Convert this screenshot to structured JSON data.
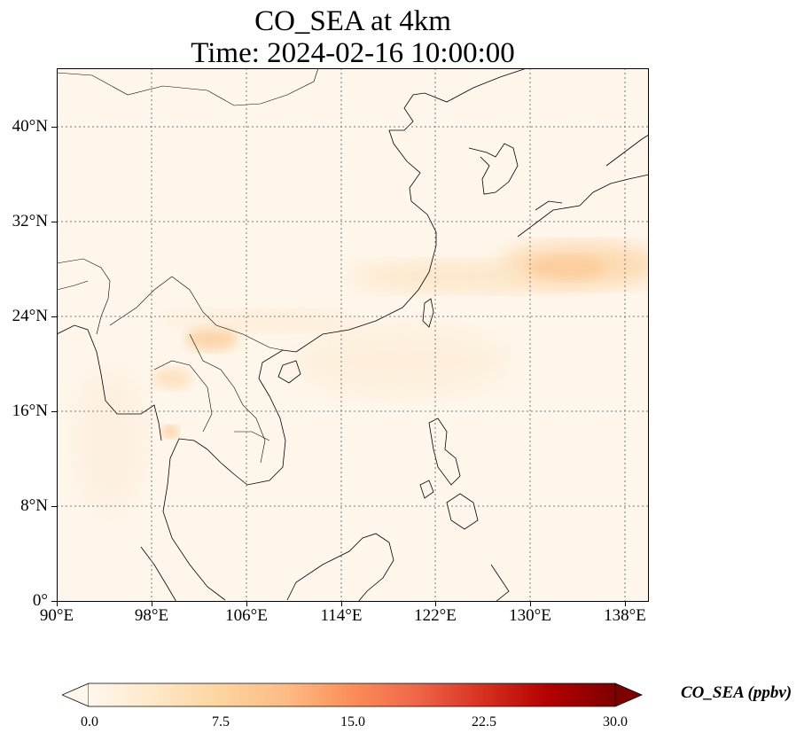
{
  "title_line1": "CO_SEA at 4km",
  "title_line2": "Time: 2024-02-16 10:00:00",
  "map": {
    "projection": "PlateCarree",
    "lon_range": [
      90,
      140
    ],
    "lat_range": [
      0,
      45
    ],
    "x_ticks": [
      "90°E",
      "98°E",
      "106°E",
      "114°E",
      "122°E",
      "130°E",
      "138°E"
    ],
    "y_ticks": [
      "0°",
      "8°N",
      "16°N",
      "24°N",
      "32°N",
      "40°N"
    ],
    "gridlines": "dotted",
    "field_colormap": "OrRd",
    "field_description_values": {
      "max_plume_lon_lat": [
        133,
        28
      ],
      "plume_value_approx_ppbv": 5
    }
  },
  "colorbar": {
    "label": "CO_SEA (ppbv)",
    "ticks": [
      "0.0",
      "7.5",
      "15.0",
      "22.5",
      "30.0"
    ],
    "range": [
      0,
      30
    ],
    "extend": "both",
    "colors": [
      "#fff7ec",
      "#fee8c8",
      "#fdd49e",
      "#fdbb84",
      "#fc8d59",
      "#ef6548",
      "#d7301f",
      "#b30000",
      "#7f0000"
    ]
  }
}
